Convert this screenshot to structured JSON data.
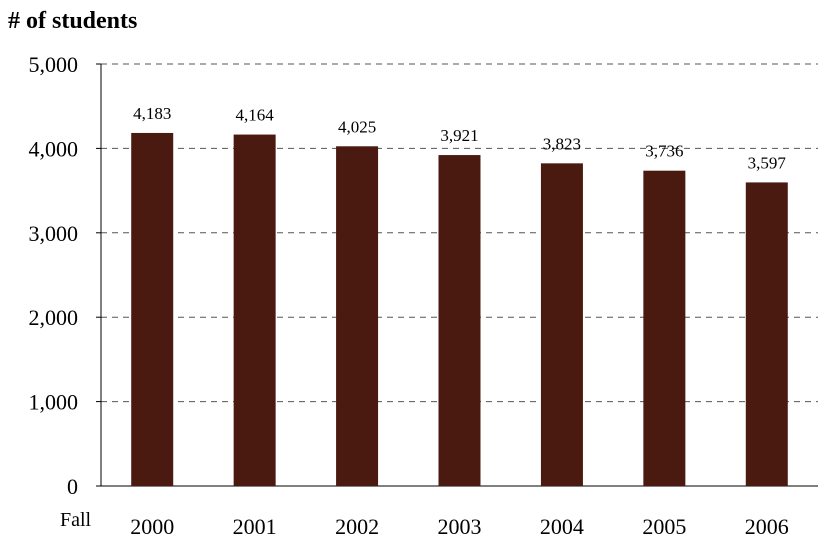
{
  "chart_data": {
    "type": "bar",
    "ylabel": "# of students",
    "xlabel_prefix": "Fall",
    "categories": [
      "2000",
      "2001",
      "2002",
      "2003",
      "2004",
      "2005",
      "2006"
    ],
    "values": [
      4183,
      4164,
      4025,
      3921,
      3823,
      3736,
      3597
    ],
    "data_labels": [
      "4,183",
      "4,164",
      "4,025",
      "3,921",
      "3,823",
      "3,736",
      "3,597"
    ],
    "ylim": [
      0,
      5000
    ],
    "yticks": [
      0,
      1000,
      2000,
      3000,
      4000,
      5000
    ],
    "ytick_labels": [
      "0",
      "1,000",
      "2,000",
      "3,000",
      "4,000",
      "5,000"
    ],
    "grid": "horizontal dashed",
    "bar_color": "#4a1a10",
    "grid_color": "#555555"
  }
}
